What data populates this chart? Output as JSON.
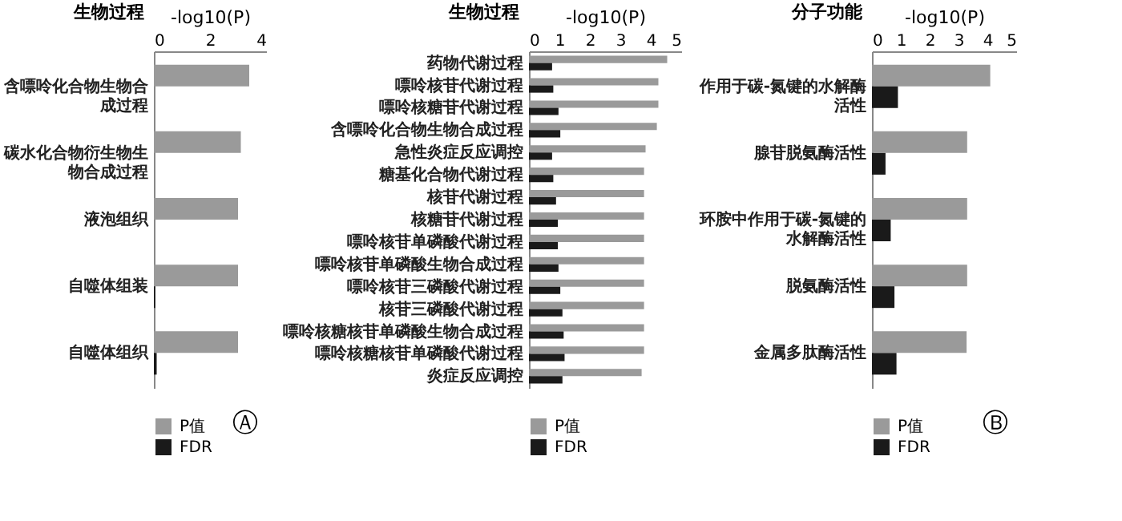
{
  "chart_data": [
    {
      "type": "bar",
      "orientation": "horizontal",
      "title": "生物过程",
      "xlabel": "-log10(P)",
      "categories": [
        "含嘌呤化合物生物合成过程",
        "碳水化合物衍生物生物合成过程",
        "液泡组织",
        "自噬体组装",
        "自噬体组织"
      ],
      "series": [
        {
          "name": "P值",
          "color": "#9a9a9a",
          "values": [
            3.4,
            3.1,
            3.0,
            3.0,
            3.0
          ]
        },
        {
          "name": "FDR",
          "color": "#1a1a1a",
          "values": [
            0,
            0,
            0,
            0.05,
            0.1
          ]
        }
      ],
      "xlim": [
        0,
        4
      ],
      "xticks": [
        0,
        2,
        4
      ],
      "legend": "bottom",
      "annotations": [
        "Ⓐ"
      ]
    },
    {
      "type": "bar",
      "orientation": "horizontal",
      "title": "生物过程",
      "xlabel": "-log10(P)",
      "categories": [
        "药物代谢过程",
        "嘌呤核苷代谢过程",
        "嘌呤核糖苷代谢过程",
        "含嘌呤化合物生物合成过程",
        "急性炎症反应调控",
        "糖基化合物代谢过程",
        "核苷代谢过程",
        "核糖苷代谢过程",
        "嘌呤核苷单磷酸代谢过程",
        "嘌呤核苷单磷酸生物合成过程",
        "嘌呤核苷三磷酸代谢过程",
        "核苷三磷酸代谢过程",
        "嘌呤核糖核苷单磷酸生物合成过程",
        "嘌呤核糖核苷单磷酸代谢过程",
        "炎症反应调控"
      ],
      "series": [
        {
          "name": "P值",
          "color": "#9a9a9a",
          "values": [
            4.54,
            4.25,
            4.25,
            4.2,
            3.83,
            3.78,
            3.78,
            3.78,
            3.78,
            3.78,
            3.78,
            3.78,
            3.78,
            3.78,
            3.7
          ]
        },
        {
          "name": "FDR",
          "color": "#1a1a1a",
          "values": [
            0.76,
            0.8,
            0.97,
            1.03,
            0.76,
            0.8,
            0.89,
            0.95,
            0.95,
            0.97,
            1.03,
            1.1,
            1.14,
            1.17,
            1.1
          ]
        }
      ],
      "xlim": [
        0,
        5
      ],
      "xticks": [
        0,
        1,
        2,
        3,
        4,
        5
      ],
      "legend": "bottom"
    },
    {
      "type": "bar",
      "orientation": "horizontal",
      "title": "分子功能",
      "xlabel": "-log10(P)",
      "categories": [
        "作用于碳-氮键的水解酶活性",
        "腺苷脱氨酶活性",
        "环胺中作用于碳-氮键的水解酶活性",
        "脱氨酶活性",
        "金属多肽酶活性"
      ],
      "series": [
        {
          "name": "P值",
          "color": "#9a9a9a",
          "values": [
            4.1,
            3.3,
            3.3,
            3.3,
            3.28
          ]
        },
        {
          "name": "FDR",
          "color": "#1a1a1a",
          "values": [
            0.9,
            0.47,
            0.65,
            0.78,
            0.85
          ]
        }
      ],
      "xlim": [
        0,
        5
      ],
      "xticks": [
        0,
        1,
        2,
        3,
        4,
        5
      ],
      "legend": "bottom",
      "annotations": [
        "Ⓑ"
      ]
    }
  ]
}
